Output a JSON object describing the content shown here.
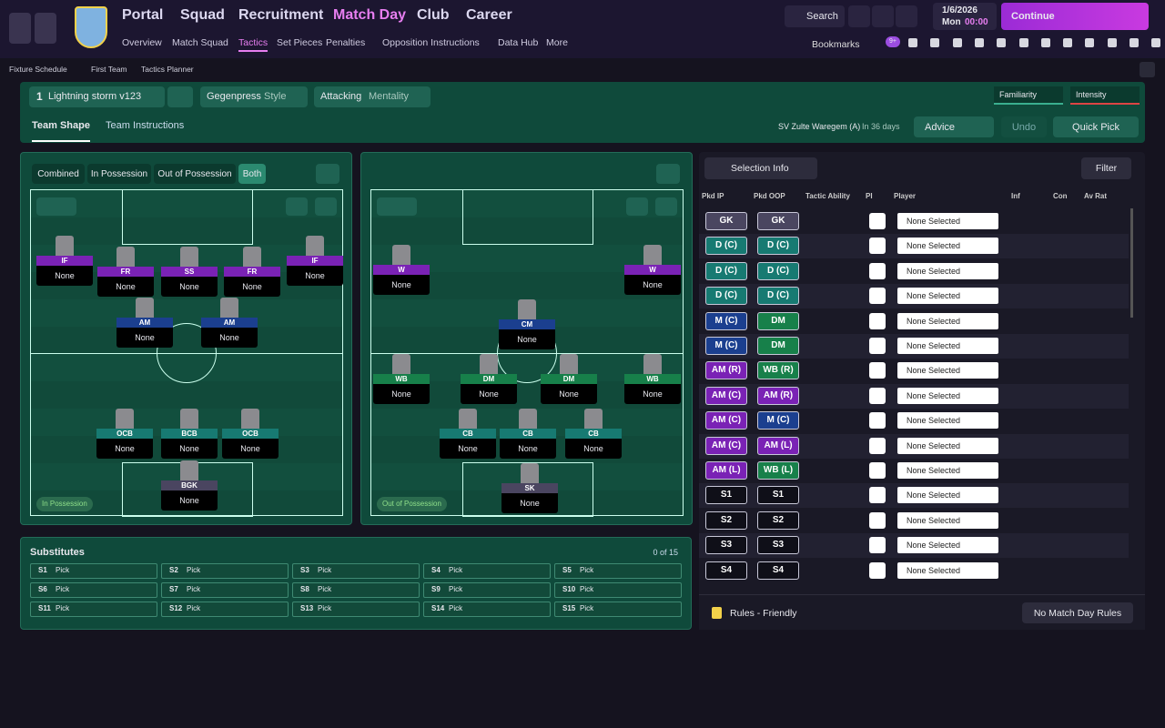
{
  "header": {
    "nav": [
      "Portal",
      "Squad",
      "Recruitment",
      "Match Day",
      "Club",
      "Career"
    ],
    "subnav": [
      "Overview",
      "Match Squad",
      "Tactics",
      "Set Pieces",
      "Penalties",
      "Opposition Instructions",
      "Data Hub",
      "More"
    ],
    "search": "Search",
    "date": "1/6/2026",
    "day": "Mon",
    "time": "00:00",
    "continue": "Continue",
    "bookmarks": "Bookmarks",
    "badge": "9+"
  },
  "breadcrumb": [
    "Fixture Schedule",
    "First Team",
    "Tactics Planner"
  ],
  "tactic": {
    "number": "1",
    "name": "Lightning storm v123",
    "style": "Gegenpress",
    "style_label": "Style",
    "mentality": "Attacking",
    "mentality_label": "Mentality",
    "familiarity": "Familiarity",
    "intensity": "Intensity"
  },
  "tabs": [
    "Team Shape",
    "Team Instructions"
  ],
  "fixture": "SV Zulte Waregem (A)",
  "fixture_when": "In 36 days",
  "advice": "Advice",
  "undo": "Undo",
  "quick_pick": "Quick Pick",
  "modes": [
    "Combined",
    "In Possession",
    "Out of Possession",
    "Both"
  ],
  "pitches": [
    {
      "label": "In Possession",
      "players": [
        {
          "role": "IF",
          "name": "None"
        },
        {
          "role": "FR",
          "name": "None"
        },
        {
          "role": "SS",
          "name": "None"
        },
        {
          "role": "FR",
          "name": "None"
        },
        {
          "role": "IF",
          "name": "None"
        },
        {
          "role": "AM",
          "name": "None"
        },
        {
          "role": "AM",
          "name": "None"
        },
        {
          "role": "OCB",
          "name": "None"
        },
        {
          "role": "BCB",
          "name": "None"
        },
        {
          "role": "OCB",
          "name": "None"
        },
        {
          "role": "BGK",
          "name": "None"
        }
      ]
    },
    {
      "label": "Out of Possession",
      "players": [
        {
          "role": "W",
          "name": "None"
        },
        {
          "role": "W",
          "name": "None"
        },
        {
          "role": "CM",
          "name": "None"
        },
        {
          "role": "WB",
          "name": "None"
        },
        {
          "role": "DM",
          "name": "None"
        },
        {
          "role": "DM",
          "name": "None"
        },
        {
          "role": "WB",
          "name": "None"
        },
        {
          "role": "CB",
          "name": "None"
        },
        {
          "role": "CB",
          "name": "None"
        },
        {
          "role": "CB",
          "name": "None"
        },
        {
          "role": "SK",
          "name": "None"
        }
      ]
    }
  ],
  "substitutes": {
    "title": "Substitutes",
    "count": "0 of 15",
    "slots": [
      [
        "S1",
        "Pick"
      ],
      [
        "S2",
        "Pick"
      ],
      [
        "S3",
        "Pick"
      ],
      [
        "S4",
        "Pick"
      ],
      [
        "S5",
        "Pick"
      ],
      [
        "S6",
        "Pick"
      ],
      [
        "S7",
        "Pick"
      ],
      [
        "S8",
        "Pick"
      ],
      [
        "S9",
        "Pick"
      ],
      [
        "S10",
        "Pick"
      ],
      [
        "S11",
        "Pick"
      ],
      [
        "S12",
        "Pick"
      ],
      [
        "S13",
        "Pick"
      ],
      [
        "S14",
        "Pick"
      ],
      [
        "S15",
        "Pick"
      ]
    ]
  },
  "selection": {
    "button": "Selection Info",
    "filter": "Filter",
    "columns": [
      "Pkd IP",
      "Pkd OOP",
      "Tactic Ability",
      "PI",
      "Player",
      "Inf",
      "Con",
      "Av Rat"
    ],
    "rows": [
      [
        "GK",
        "GK",
        "None Selected"
      ],
      [
        "D (C)",
        "D (C)",
        "None Selected"
      ],
      [
        "D (C)",
        "D (C)",
        "None Selected"
      ],
      [
        "D (C)",
        "D (C)",
        "None Selected"
      ],
      [
        "M (C)",
        "DM",
        "None Selected"
      ],
      [
        "M (C)",
        "DM",
        "None Selected"
      ],
      [
        "AM (R)",
        "WB (R)",
        "None Selected"
      ],
      [
        "AM (C)",
        "AM (R)",
        "None Selected"
      ],
      [
        "AM (C)",
        "M (C)",
        "None Selected"
      ],
      [
        "AM (C)",
        "AM (L)",
        "None Selected"
      ],
      [
        "AM (L)",
        "WB (L)",
        "None Selected"
      ],
      [
        "S1",
        "S1",
        "None Selected"
      ],
      [
        "S2",
        "S2",
        "None Selected"
      ],
      [
        "S3",
        "S3",
        "None Selected"
      ],
      [
        "S4",
        "S4",
        "None Selected"
      ]
    ],
    "rules": "Rules - Friendly",
    "match_day_rules": "No Match Day Rules"
  }
}
